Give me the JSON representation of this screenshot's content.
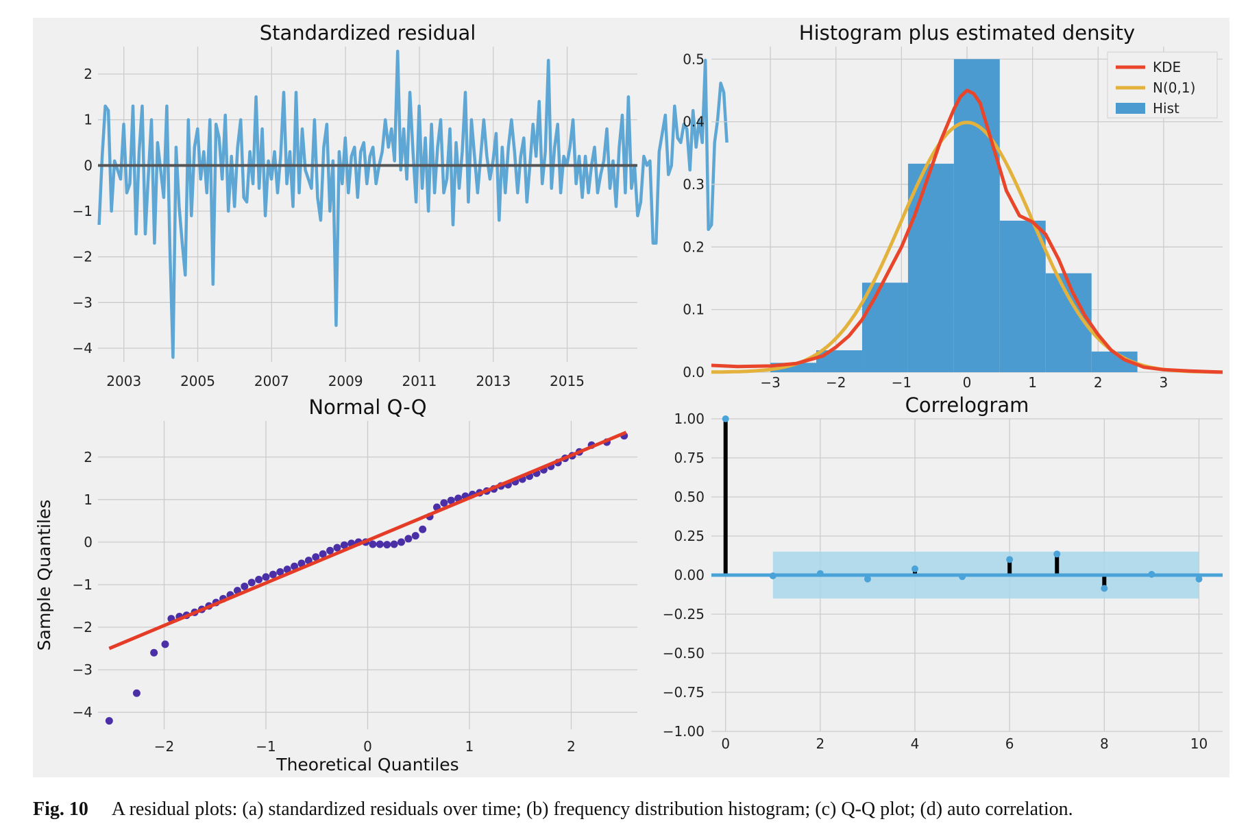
{
  "caption": {
    "label": "Fig. 10",
    "text": "A residual plots: (a) standardized residuals over time; (b) frequency distribution histogram; (c) Q-Q plot; (d) auto correlation."
  },
  "colors": {
    "figure_bg": "#f0f0f0",
    "grid": "#cbcbcb",
    "resid_line": "#5ea6d4",
    "hist_fill": "#4c9bd0",
    "kde": "#e8452a",
    "normal": "#e3b23c",
    "qq_points": "#4b2fa7",
    "qq_line": "#e53c27",
    "acf_stem": "#000000",
    "acf_band": "#a9d7ea",
    "acf_marker": "#4aa3d8"
  },
  "chart_data": [
    {
      "type": "line",
      "title": "Standardized residual",
      "xlabel": "",
      "ylabel": "",
      "xlim": [
        2002.3,
        2016.9
      ],
      "ylim": [
        -4.3,
        2.6
      ],
      "xticks": [
        2003,
        2005,
        2007,
        2009,
        2011,
        2013,
        2015
      ],
      "yticks": [
        -4,
        -3,
        -2,
        -1,
        0,
        1,
        2
      ],
      "hline": 0,
      "grid": true,
      "series": [
        {
          "x_start": 2002.33,
          "x_step": 0.0833,
          "y": [
            -1.3,
            0.2,
            1.3,
            1.2,
            -1.0,
            0.1,
            -0.1,
            -0.3,
            0.9,
            -0.6,
            -0.4,
            1.3,
            -1.5,
            0.3,
            1.3,
            -1.5,
            -0.2,
            1.0,
            -1.7,
            0.5,
            -0.1,
            -0.7,
            1.3,
            -1.8,
            -4.2,
            0.4,
            -0.9,
            -1.7,
            -2.4,
            1.0,
            -1.1,
            0.4,
            0.8,
            -0.3,
            0.3,
            -0.6,
            1.0,
            -2.6,
            0.9,
            0.6,
            -0.3,
            1.1,
            -1.0,
            0.2,
            -0.9,
            0.4,
            1.0,
            -0.7,
            -0.8,
            0.3,
            -0.4,
            1.5,
            -0.5,
            0.8,
            -1.1,
            0.1,
            -0.3,
            0.3,
            -0.6,
            0.2,
            1.6,
            -0.4,
            0.3,
            -0.9,
            1.6,
            -0.6,
            0.8,
            -0.1,
            -0.3,
            -0.5,
            1.0,
            -0.7,
            -1.2,
            0.4,
            0.9,
            -1.0,
            0.1,
            -3.5,
            0.3,
            -0.4,
            0.6,
            -0.6,
            0.2,
            0.4,
            -0.7,
            0.3,
            0.5,
            -0.4,
            0.2,
            0.4,
            -0.4,
            0.0,
            0.3,
            1.0,
            0.4,
            0.8,
            0.1,
            2.5,
            -0.1,
            0.8,
            -0.3,
            1.6,
            0.3,
            -0.8,
            1.3,
            -0.5,
            0.6,
            -1.0,
            0.9,
            -0.6,
            0.4,
            1.0,
            -0.6,
            -0.3,
            0.8,
            -1.3,
            0.5,
            -0.5,
            0.3,
            1.6,
            -0.8,
            1.0,
            0.2,
            -0.6,
            0.2,
            1.0,
            0.2,
            -0.3,
            0.1,
            0.7,
            -1.2,
            0.4,
            -0.6,
            0.4,
            1.0,
            0.3,
            -0.6,
            0.2,
            0.6,
            -0.8,
            0.0,
            0.9,
            0.2,
            1.4,
            -0.4,
            0.3,
            2.3,
            -0.5,
            0.4,
            0.9,
            -0.6,
            0.2,
            0.0,
            0.4,
            1.0,
            -0.4,
            0.2,
            -0.7,
            0.2,
            -0.6,
            0.0,
            0.4,
            -0.6,
            -0.2,
            0.1,
            0.8,
            -0.5,
            0.1,
            -0.9,
            0.4,
            1.1,
            -0.6,
            1.5,
            -0.5,
            0.0,
            -1.1,
            -0.8,
            0.2,
            0.0,
            0.1,
            -1.7,
            -1.7,
            0.3,
            0.7,
            1.1,
            -0.2,
            0.0,
            1.3,
            0.6,
            0.5,
            0.9,
            0.8,
            -0.1,
            1.2,
            0.4,
            1.0,
            0.5,
            2.3,
            -1.4,
            -1.3,
            0.5,
            1.0,
            1.8,
            1.6,
            0.5
          ]
        }
      ]
    },
    {
      "type": "bar",
      "title": "Histogram plus estimated density",
      "xlabel": "",
      "ylabel": "",
      "xlim": [
        -3.9,
        3.9
      ],
      "ylim": [
        0,
        0.52
      ],
      "xticks": [
        -3,
        -2,
        -1,
        0,
        1,
        2,
        3
      ],
      "yticks": [
        0.0,
        0.1,
        0.2,
        0.3,
        0.4,
        0.5
      ],
      "grid": true,
      "legend": {
        "placement": "top-right",
        "entries": [
          "KDE",
          "N(0,1)",
          "Hist"
        ]
      },
      "bin_edges": [
        -3.0,
        -2.3,
        -1.6,
        -0.9,
        -0.2,
        0.5,
        1.2,
        1.9,
        2.6
      ],
      "values": [
        0.015,
        0.035,
        0.143,
        0.333,
        0.5,
        0.242,
        0.158,
        0.033
      ],
      "series": [
        {
          "name": "KDE",
          "x": [
            -3.9,
            -3.5,
            -3.0,
            -2.6,
            -2.2,
            -2.0,
            -1.8,
            -1.6,
            -1.4,
            -1.2,
            -1.0,
            -0.8,
            -0.6,
            -0.4,
            -0.2,
            -0.1,
            0.0,
            0.1,
            0.2,
            0.4,
            0.6,
            0.8,
            1.0,
            1.2,
            1.4,
            1.6,
            1.8,
            2.0,
            2.2,
            2.4,
            2.7,
            3.0,
            3.4,
            3.9
          ],
          "y": [
            0.011,
            0.009,
            0.01,
            0.014,
            0.026,
            0.04,
            0.058,
            0.084,
            0.12,
            0.16,
            0.2,
            0.25,
            0.31,
            0.37,
            0.42,
            0.44,
            0.45,
            0.445,
            0.43,
            0.36,
            0.29,
            0.25,
            0.24,
            0.22,
            0.18,
            0.13,
            0.09,
            0.06,
            0.035,
            0.02,
            0.008,
            0.004,
            0.002,
            0.0
          ]
        },
        {
          "name": "N(0,1)",
          "function": "normal_pdf",
          "mean": 0,
          "std": 1
        }
      ]
    },
    {
      "type": "scatter",
      "title": "Normal Q-Q",
      "xlabel": "Theoretical Quantiles",
      "ylabel": "Sample Quantiles",
      "xlim": [
        -2.65,
        2.65
      ],
      "ylim": [
        -4.4,
        2.85
      ],
      "xticks": [
        -2,
        -1,
        0,
        1,
        2
      ],
      "yticks": [
        -4,
        -3,
        -2,
        -1,
        0,
        1,
        2
      ],
      "grid": true,
      "reference_line": {
        "x": [
          -2.54,
          2.54
        ],
        "y": [
          -2.5,
          2.58
        ]
      },
      "series": [
        {
          "x": [
            -2.54,
            -2.27,
            -2.1,
            -1.99,
            -1.93,
            -1.85,
            -1.78,
            -1.7,
            -1.63,
            -1.56,
            -1.49,
            -1.42,
            -1.35,
            -1.28,
            -1.21,
            -1.14,
            -1.07,
            -1.0,
            -0.93,
            -0.86,
            -0.79,
            -0.72,
            -0.65,
            -0.58,
            -0.51,
            -0.44,
            -0.37,
            -0.3,
            -0.23,
            -0.16,
            -0.09,
            -0.02,
            0.05,
            0.12,
            0.19,
            0.26,
            0.33,
            0.4,
            0.47,
            0.54,
            0.61,
            0.68,
            0.75,
            0.82,
            0.89,
            0.96,
            1.03,
            1.1,
            1.17,
            1.24,
            1.31,
            1.38,
            1.45,
            1.52,
            1.59,
            1.66,
            1.73,
            1.8,
            1.87,
            1.94,
            2.01,
            2.08,
            2.2,
            2.35,
            2.52
          ],
          "y": [
            -4.2,
            -3.55,
            -2.6,
            -2.4,
            -1.8,
            -1.75,
            -1.72,
            -1.65,
            -1.58,
            -1.5,
            -1.42,
            -1.33,
            -1.24,
            -1.14,
            -1.04,
            -0.95,
            -0.88,
            -0.82,
            -0.76,
            -0.7,
            -0.64,
            -0.57,
            -0.5,
            -0.43,
            -0.35,
            -0.28,
            -0.2,
            -0.13,
            -0.07,
            -0.03,
            0.0,
            0.0,
            -0.05,
            -0.05,
            -0.06,
            -0.05,
            0.0,
            0.08,
            0.15,
            0.3,
            0.6,
            0.82,
            0.92,
            0.98,
            1.03,
            1.08,
            1.12,
            1.16,
            1.2,
            1.25,
            1.32,
            1.35,
            1.42,
            1.48,
            1.55,
            1.62,
            1.7,
            1.78,
            1.87,
            1.97,
            2.03,
            2.12,
            2.28,
            2.35,
            2.5
          ]
        }
      ]
    },
    {
      "type": "bar",
      "title": "Correlogram",
      "xlabel": "",
      "ylabel": "",
      "xlim": [
        -0.3,
        10.5
      ],
      "ylim": [
        -1.0,
        1.0
      ],
      "xticks": [
        0,
        2,
        4,
        6,
        8,
        10
      ],
      "yticks": [
        -1.0,
        -0.75,
        -0.5,
        -0.25,
        0.0,
        0.25,
        0.5,
        0.75,
        1.0
      ],
      "ytick_labels": [
        "−1.00",
        "−0.75",
        "−0.50",
        "−0.25",
        "0.00",
        "0.25",
        "0.50",
        "0.75",
        "1.00"
      ],
      "grid": true,
      "hline": 0,
      "confidence_band": {
        "x": [
          1,
          10
        ],
        "lower": -0.15,
        "upper": 0.15
      },
      "categories": [
        0,
        1,
        2,
        3,
        4,
        5,
        6,
        7,
        8,
        9,
        10
      ],
      "values": [
        1.0,
        -0.005,
        0.01,
        -0.025,
        0.04,
        -0.01,
        0.1,
        0.135,
        -0.085,
        0.005,
        -0.025
      ]
    }
  ]
}
